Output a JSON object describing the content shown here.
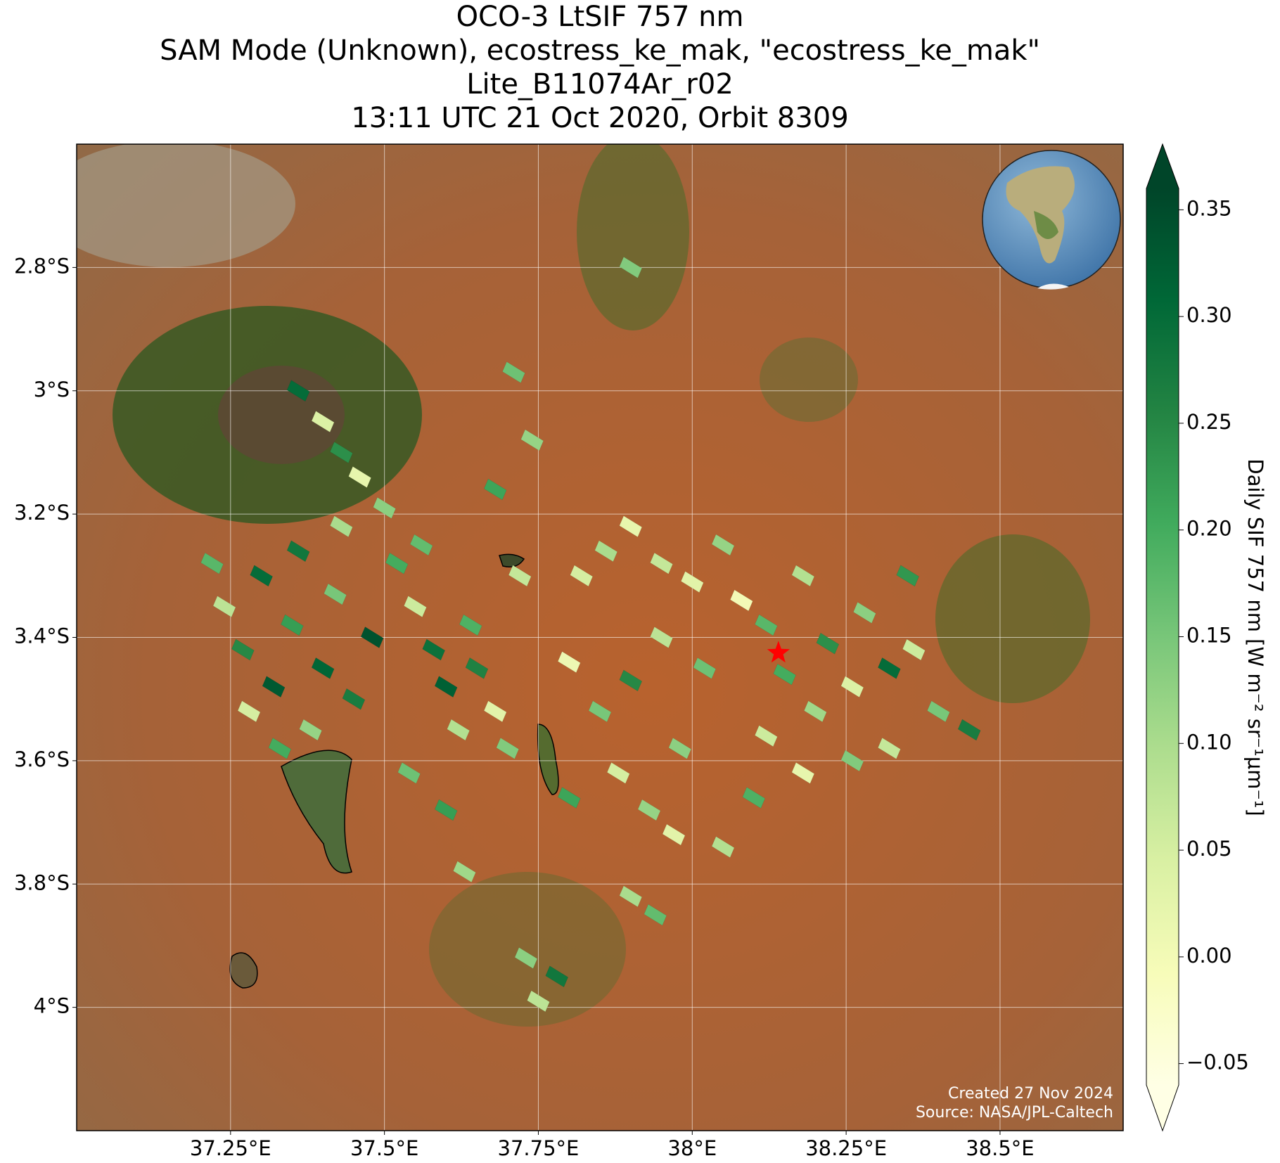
{
  "chart_data": {
    "type": "map",
    "title": [
      "OCO-3 LtSIF 757 nm",
      "SAM Mode (Unknown), ecostress_ke_mak, \"ecostress_ke_mak\"",
      "Lite_B11074Ar_r02",
      "13:11 UTC 21 Oct 2020, Orbit 8309"
    ],
    "xlim": [
      37.0,
      38.7
    ],
    "ylim": [
      -4.2,
      -2.6
    ],
    "xticks": [
      {
        "value": 37.25,
        "label": "37.25°E"
      },
      {
        "value": 37.5,
        "label": "37.5°E"
      },
      {
        "value": 37.75,
        "label": "37.75°E"
      },
      {
        "value": 38,
        "label": "38°E"
      },
      {
        "value": 38.25,
        "label": "38.25°E"
      },
      {
        "value": 38.5,
        "label": "38.5°E"
      }
    ],
    "yticks": [
      {
        "value": -2.8,
        "label": "2.8°S"
      },
      {
        "value": -3.0,
        "label": "3°S"
      },
      {
        "value": -3.2,
        "label": "3.2°S"
      },
      {
        "value": -3.4,
        "label": "3.4°S"
      },
      {
        "value": -3.6,
        "label": "3.6°S"
      },
      {
        "value": -3.8,
        "label": "3.8°S"
      },
      {
        "value": -4.0,
        "label": "4°S"
      }
    ],
    "grid": true,
    "colorbar_label": "Daily SIF 757 nm [W m⁻² sr⁻¹μm⁻¹]",
    "clim": [
      -0.06,
      0.36
    ],
    "cticks": [
      {
        "value": -0.05,
        "label": "−0.05"
      },
      {
        "value": 0,
        "label": "0.00"
      },
      0.05,
      {
        "value": 0.1,
        "label": "0.10"
      },
      0.15,
      {
        "value": 0.2,
        "label": "0.20"
      },
      0.25,
      {
        "value": 0.3,
        "label": "0.30"
      },
      0.35
    ],
    "colormap": [
      "#ffffe5",
      "#f7fcb9",
      "#d9f0a3",
      "#addd8e",
      "#78c679",
      "#41ab5d",
      "#238443",
      "#006837",
      "#004529"
    ],
    "target": {
      "lon": 38.14,
      "lat": -3.425,
      "color": "#ff0000"
    },
    "soundings": {
      "lon": [
        37.22,
        37.24,
        37.27,
        37.3,
        37.32,
        37.35,
        37.38,
        37.36,
        37.28,
        37.4,
        37.33,
        37.42,
        37.45,
        37.43,
        37.48,
        37.4,
        37.43,
        37.46,
        37.5,
        37.36,
        37.52,
        37.55,
        37.58,
        37.56,
        37.6,
        37.62,
        37.65,
        37.68,
        37.64,
        37.7,
        37.6,
        37.63,
        37.54,
        37.72,
        37.68,
        37.74,
        37.71,
        37.9,
        37.73,
        37.75,
        37.78,
        37.82,
        37.86,
        37.9,
        37.95,
        38.0,
        38.05,
        38.08,
        38.12,
        38.18,
        38.22,
        38.28,
        38.32,
        38.36,
        38.4,
        38.45,
        38.26,
        38.2,
        38.15,
        37.95,
        37.9,
        37.85,
        37.8,
        38.02,
        37.88,
        37.93,
        37.97,
        38.05,
        38.1,
        38.18,
        38.26,
        38.32,
        37.9,
        37.94,
        38.12,
        37.8,
        37.98,
        38.35
      ],
      "lat": [
        -3.28,
        -3.35,
        -3.42,
        -3.3,
        -3.48,
        -3.38,
        -3.55,
        -3.26,
        -3.52,
        -3.45,
        -3.58,
        -3.33,
        -3.5,
        -3.22,
        -3.4,
        -3.05,
        -3.1,
        -3.14,
        -3.19,
        -3.0,
        -3.28,
        -3.35,
        -3.42,
        -3.25,
        -3.48,
        -3.55,
        -3.45,
        -3.52,
        -3.38,
        -3.58,
        -3.68,
        -3.78,
        -3.62,
        -3.3,
        -3.16,
        -3.08,
        -2.97,
        -2.8,
        -3.92,
        -3.99,
        -3.95,
        -3.3,
        -3.26,
        -3.22,
        -3.28,
        -3.31,
        -3.25,
        -3.34,
        -3.38,
        -3.3,
        -3.41,
        -3.36,
        -3.45,
        -3.42,
        -3.52,
        -3.55,
        -3.48,
        -3.52,
        -3.46,
        -3.4,
        -3.47,
        -3.52,
        -3.44,
        -3.45,
        -3.62,
        -3.68,
        -3.72,
        -3.74,
        -3.66,
        -3.62,
        -3.6,
        -3.58,
        -3.82,
        -3.85,
        -3.56,
        -3.66,
        -3.58,
        -3.3
      ],
      "sif": [
        0.18,
        0.08,
        0.25,
        0.3,
        0.33,
        0.22,
        0.12,
        0.28,
        0.05,
        0.31,
        0.2,
        0.15,
        0.27,
        0.1,
        0.34,
        0.04,
        0.24,
        0.02,
        0.13,
        0.3,
        0.2,
        0.06,
        0.29,
        0.17,
        0.32,
        0.09,
        0.26,
        0.03,
        0.19,
        0.14,
        0.22,
        0.11,
        0.16,
        0.07,
        0.21,
        0.12,
        0.16,
        0.14,
        0.13,
        0.08,
        0.28,
        0.05,
        0.1,
        0.02,
        0.07,
        0.03,
        0.12,
        0.0,
        0.18,
        0.09,
        0.24,
        0.13,
        0.3,
        0.06,
        0.15,
        0.27,
        0.04,
        0.11,
        0.2,
        0.08,
        0.25,
        0.15,
        0.01,
        0.16,
        0.05,
        0.12,
        0.03,
        0.09,
        0.19,
        0.02,
        0.14,
        0.07,
        0.1,
        0.17,
        0.06,
        0.21,
        0.13,
        0.23
      ]
    },
    "credits": [
      "Created 27 Nov 2024",
      "Source: NASA/JPL-Caltech"
    ]
  }
}
